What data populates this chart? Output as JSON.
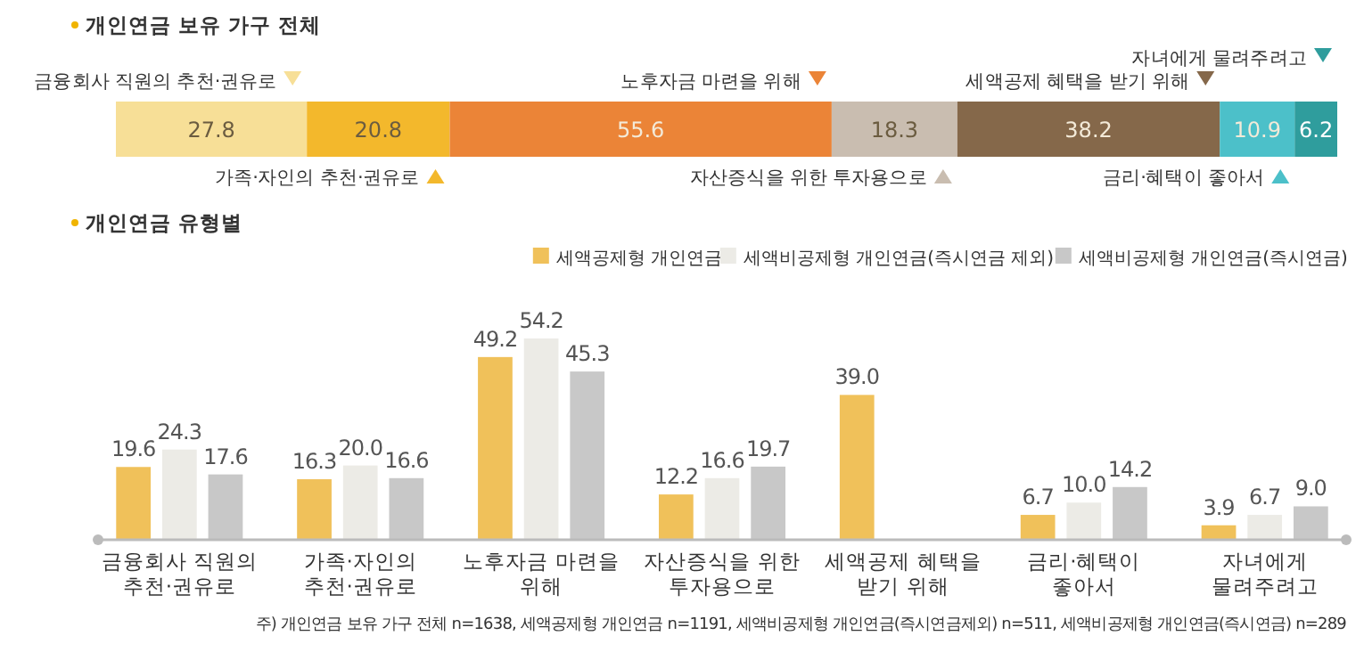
{
  "chart_data": [
    {
      "type": "bar",
      "title": "개인연금 보유 가구 전체",
      "orientation": "horizontal",
      "stacked": true,
      "data_labels": true,
      "legend": "top",
      "categories": [
        null
      ],
      "series": [
        {
          "name": "금융회사 직원의 추천·권유로",
          "color": "#f7df97",
          "values": [
            27.8
          ]
        },
        {
          "name": "가족·자인의 추천·권유로",
          "color": "#f3b82c",
          "values": [
            20.8
          ]
        },
        {
          "name": "노후자금 마련을 위해",
          "color": "#eb8437",
          "values": [
            55.6
          ]
        },
        {
          "name": "자산증식을 위한 투자용으로",
          "color": "#c9bdb0",
          "values": [
            18.3
          ]
        },
        {
          "name": "세액공제 혜택을 받기 위해",
          "color": "#85684a",
          "values": [
            38.2
          ]
        },
        {
          "name": "금리·혜택이 좋아서",
          "color": "#4cc0c9",
          "values": [
            10.9
          ]
        },
        {
          "name": "자녀에게 물려주려고",
          "color": "#2f9d9d",
          "values": [
            6.2
          ]
        }
      ]
    },
    {
      "type": "bar",
      "title": "개인연금 유형별",
      "legend": "top right",
      "categories": [
        "금융회사 직원의\n추천·권유로",
        "가족·자인의\n추천·권유로",
        "노후자금 마련을\n위해",
        "자산증식을 위한\n투자용으로",
        "세액공제 혜택을\n받기 위해",
        "금리·혜택이\n좋아서",
        "자녀에게\n물려주려고"
      ],
      "series": [
        {
          "name": "세액공제형 개인연금",
          "color": "#f0c15a",
          "values": [
            19.6,
            16.3,
            49.2,
            12.2,
            39.0,
            6.7,
            3.9
          ],
          "value_labels": [
            "19.6",
            "16.3",
            "49.2",
            "12.2",
            "39.0",
            "6.7",
            "3.9"
          ]
        },
        {
          "name": "세액비공제형 개인연금(즉시연금 제외)",
          "color": "#ecebe6",
          "values": [
            24.3,
            20.0,
            54.2,
            16.6,
            null,
            10.0,
            6.7
          ],
          "value_labels": [
            "24.3",
            "20.0",
            "54.2",
            "16.6",
            null,
            "10.0",
            "6.7"
          ]
        },
        {
          "name": "세액비공제형 개인연금(즉시연금)",
          "color": "#c8c8c8",
          "values": [
            17.6,
            16.6,
            45.3,
            19.7,
            null,
            14.2,
            9.0
          ],
          "value_labels": [
            "17.6",
            "16.6",
            "45.3",
            "19.7",
            null,
            "14.2",
            "9.0"
          ]
        }
      ],
      "annotations": [
        "주) 개인연금 보유 가구 전체 n=1638, 세액공제형 개인연금 n=1191, 세액비공제형 개인연금(즉시연금제외) n=511, 세액비공제형 개인연금(즉시연금) n=289"
      ]
    }
  ]
}
